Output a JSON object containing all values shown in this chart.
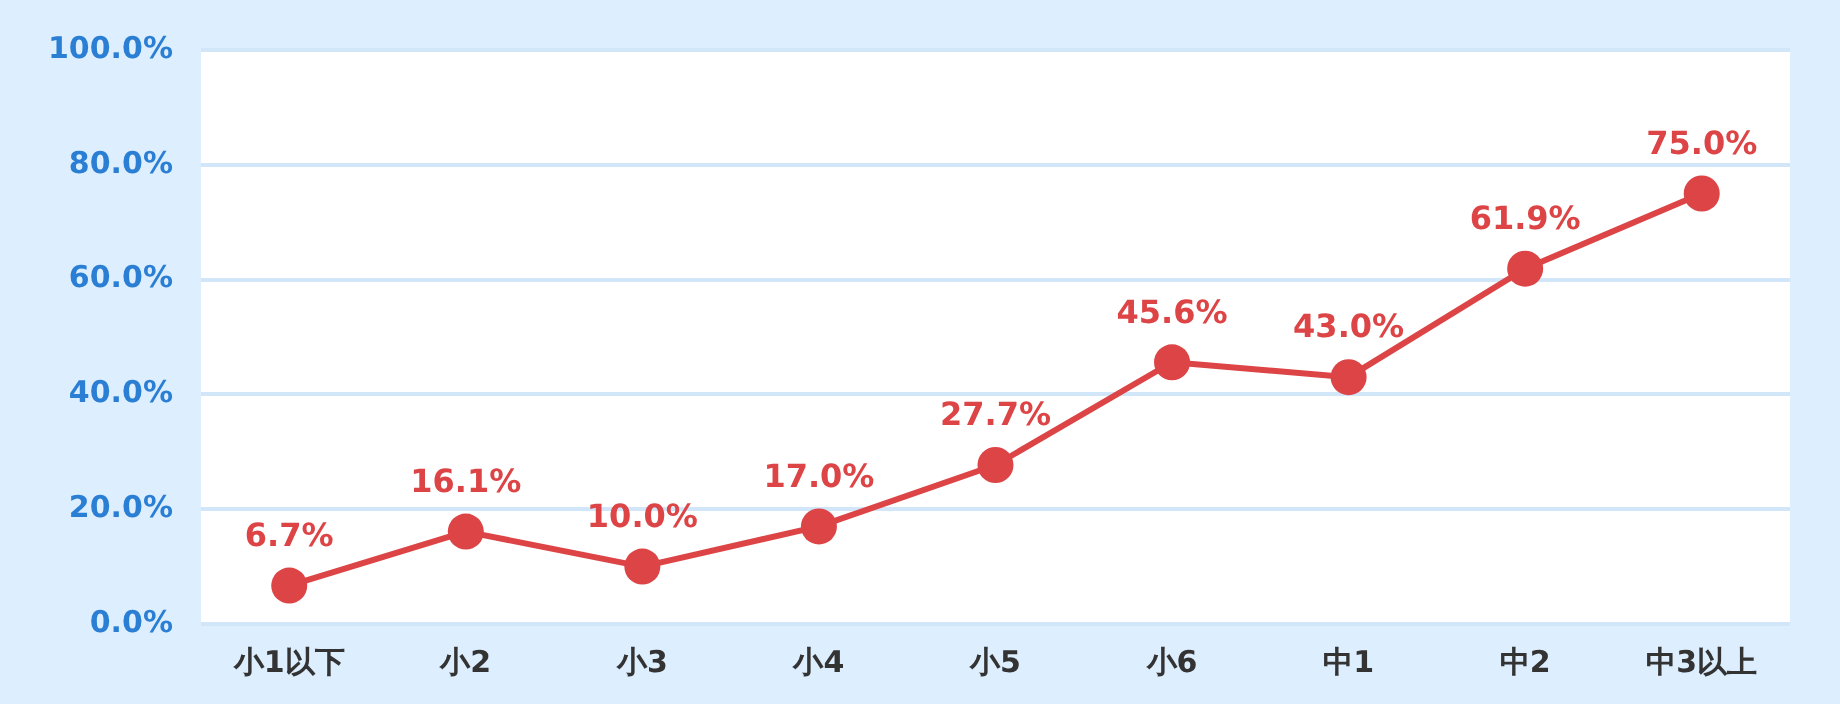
{
  "chart_data": {
    "type": "line",
    "categories": [
      "小1以下",
      "小2",
      "小3",
      "小4",
      "小5",
      "小6",
      "中1",
      "中2",
      "中3以上"
    ],
    "series": [
      {
        "color": "#dc4446",
        "values": [
          6.7,
          16.1,
          10.0,
          17.0,
          27.7,
          45.6,
          43.0,
          61.9,
          75.0
        ],
        "value_labels": [
          "6.7%",
          "16.1%",
          "10.0%",
          "17.0%",
          "27.7%",
          "45.6%",
          "43.0%",
          "61.9%",
          "75.0%"
        ]
      }
    ],
    "ylim": [
      0,
      100
    ],
    "yticks": [
      {
        "value": 0,
        "label": "0.0%"
      },
      {
        "value": 20,
        "label": "20.0%"
      },
      {
        "value": 40,
        "label": "40.0%"
      },
      {
        "value": 60,
        "label": "60.0%"
      },
      {
        "value": 80,
        "label": "80.0%"
      },
      {
        "value": 100,
        "label": "100.0%"
      }
    ],
    "grid": "y",
    "legend": false,
    "marker": "circle",
    "line_style": "solid"
  }
}
